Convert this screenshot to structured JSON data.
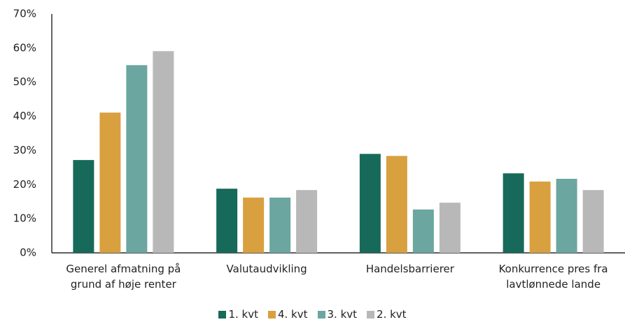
{
  "chart_data": {
    "type": "bar",
    "categories": [
      "Generel afmatning på grund af høje renter",
      "Valutaudvikling",
      "Handelsbarrierer",
      "Konkurrence pres fra lavtlønnede lande"
    ],
    "series": [
      {
        "name": "1. kvt",
        "color": "#176a5a",
        "values": [
          27.2,
          18.8,
          29.0,
          23.3
        ]
      },
      {
        "name": "4. kvt",
        "color": "#d9a040",
        "values": [
          41.1,
          16.2,
          28.4,
          20.9
        ]
      },
      {
        "name": "3. kvt",
        "color": "#6ba6a0",
        "values": [
          55.0,
          16.2,
          12.7,
          21.7
        ]
      },
      {
        "name": "2. kvt",
        "color": "#b8b8b8",
        "values": [
          59.1,
          18.4,
          14.7,
          18.4
        ]
      }
    ],
    "ylim": [
      0,
      70
    ],
    "yticks": [
      {
        "value": 0,
        "label": "0%"
      },
      {
        "value": 10,
        "label": "10%"
      },
      {
        "value": 20,
        "label": "20%"
      },
      {
        "value": 30,
        "label": "30%"
      },
      {
        "value": 40,
        "label": "40%"
      },
      {
        "value": 50,
        "label": "50%"
      },
      {
        "value": 60,
        "label": "60%"
      },
      {
        "value": 70,
        "label": "70%"
      }
    ],
    "grid": false,
    "legend": "bottom"
  }
}
